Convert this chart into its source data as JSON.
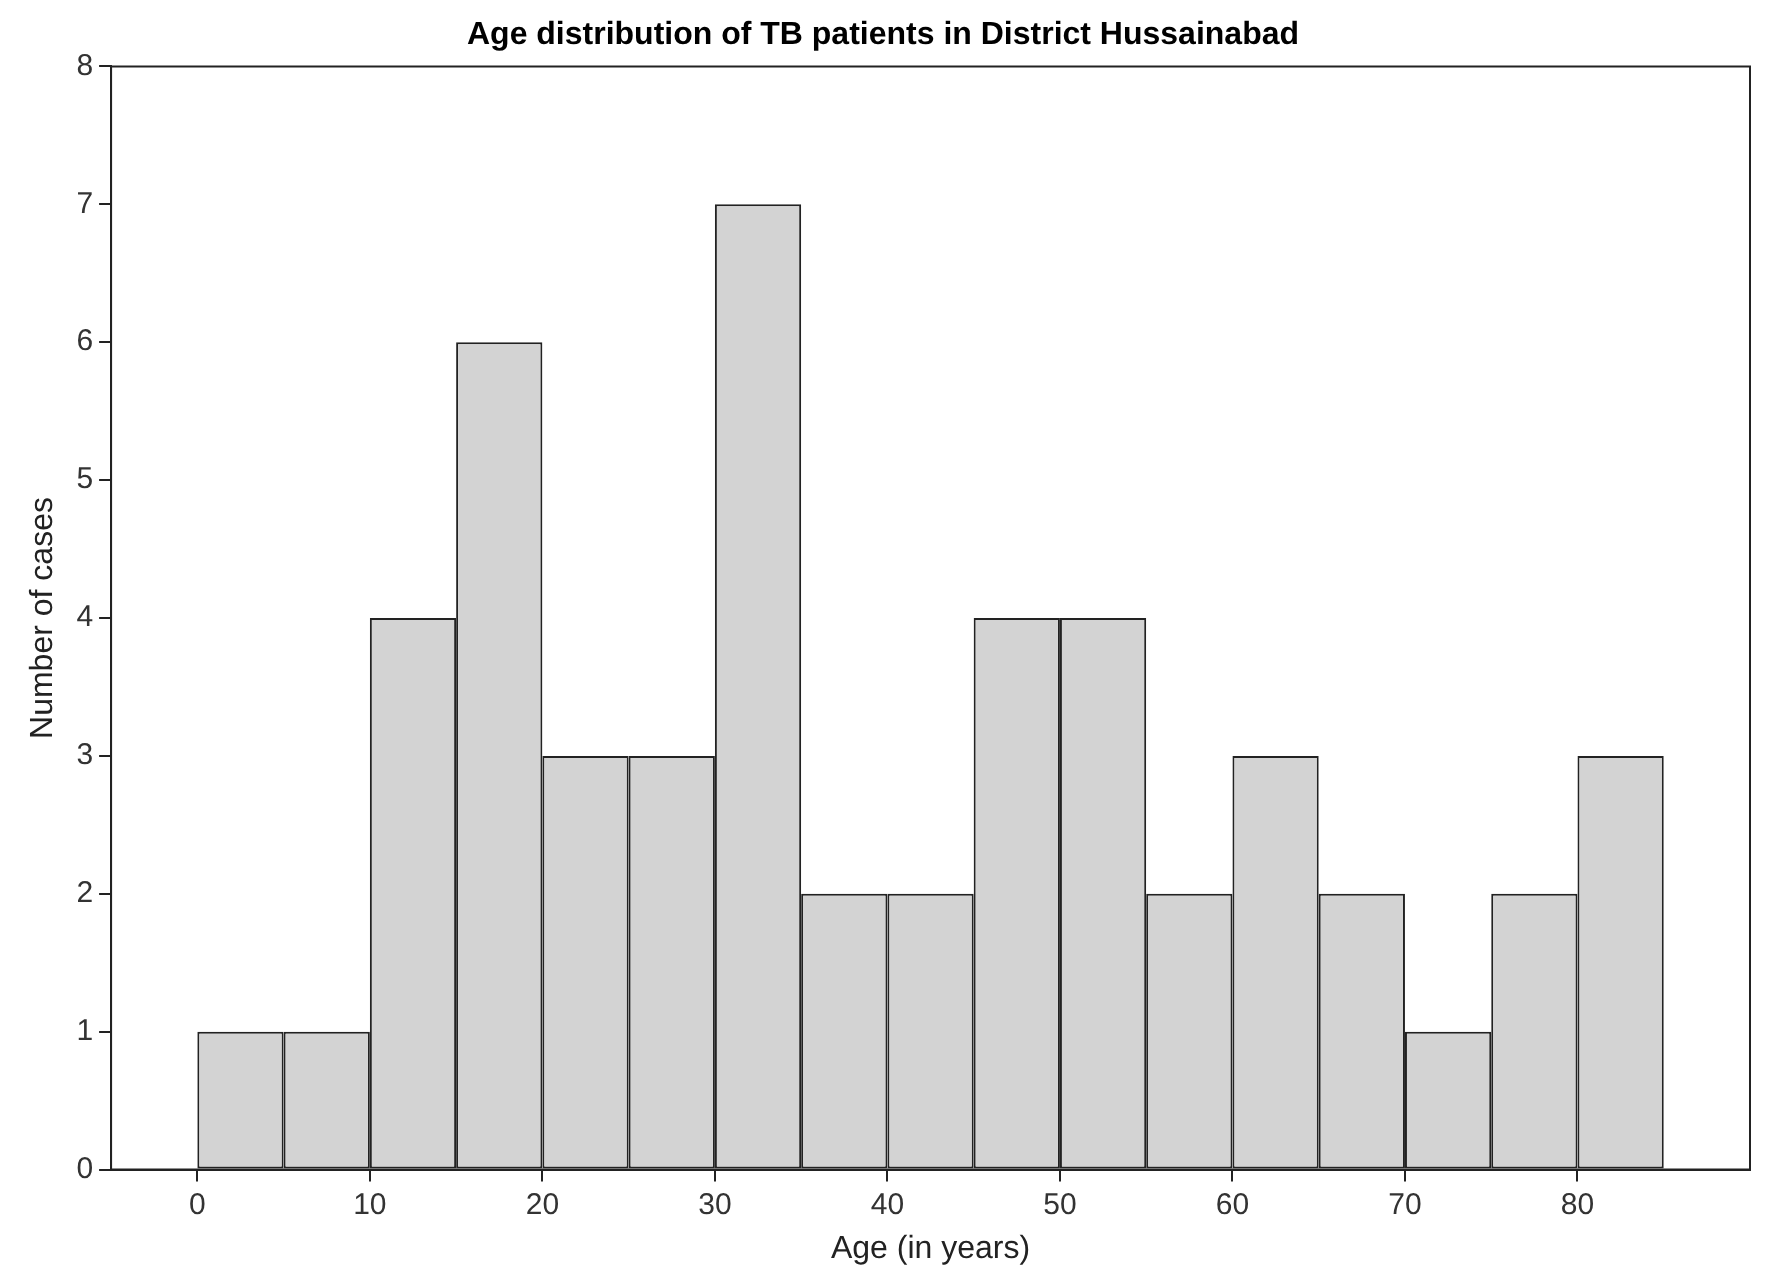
{
  "chart_data": {
    "type": "histogram",
    "title": "Age distribution of TB patients in District Hussainabad",
    "xlabel": "Age (in years)",
    "ylabel": "Number of cases",
    "bins": [
      0,
      5,
      10,
      15,
      20,
      25,
      30,
      35,
      40,
      45,
      50,
      55,
      60,
      65,
      70,
      75,
      80,
      85
    ],
    "values": [
      1,
      1,
      4,
      6,
      3,
      3,
      7,
      2,
      2,
      4,
      4,
      2,
      3,
      2,
      1,
      2,
      3
    ],
    "color": "#d3d3d3",
    "xlim": [
      -5,
      90
    ],
    "xticks": [
      0,
      10,
      20,
      30,
      40,
      50,
      60,
      70,
      80
    ],
    "ylim": [
      0,
      8
    ],
    "yticks": [
      0,
      1,
      2,
      3,
      4,
      5,
      6,
      7,
      8
    ],
    "grid": false,
    "legend": false
  }
}
